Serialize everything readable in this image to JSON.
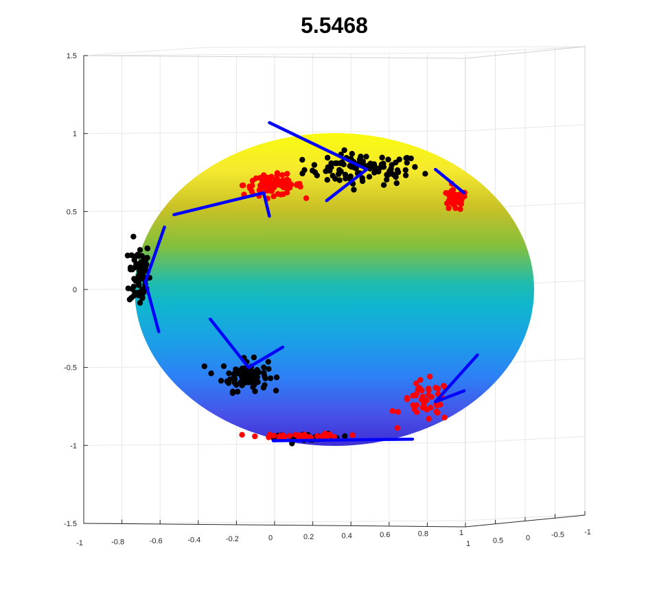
{
  "chart_data": {
    "type": "scatter",
    "title": "5.5468",
    "xlabel": "",
    "ylabel": "",
    "zlabel": "",
    "xlim": [
      -1,
      1
    ],
    "ylim": [
      1,
      -1
    ],
    "zlim": [
      -1.5,
      1.5
    ],
    "grid": true,
    "x_ticks": [
      "-1",
      "-0.8",
      "-0.6",
      "-0.4",
      "-0.2",
      "0",
      "0.2",
      "0.4",
      "0.6",
      "0.8",
      "1"
    ],
    "y_ticks": [
      "1",
      "0.5",
      "0",
      "-0.5",
      "-1"
    ],
    "z_ticks": [
      "1.5",
      "1",
      "0.5",
      "0",
      "-0.5",
      "-1",
      "-1.5"
    ],
    "surface": {
      "shape": "unit-sphere",
      "colormap": "parula",
      "colored_by": "z"
    },
    "series": [
      {
        "marker_color": "#000000",
        "clusters": [
          {
            "center": [
              0.47,
              0.77
            ],
            "spread": [
              0.28,
              0.09
            ],
            "count": 95
          },
          {
            "center": [
              -0.7,
              0.1
            ],
            "spread": [
              0.05,
              0.2
            ],
            "count": 75
          },
          {
            "center": [
              -0.15,
              -0.55
            ],
            "spread": [
              0.11,
              0.09
            ],
            "count": 80
          },
          {
            "center": [
              0.2,
              -0.95
            ],
            "spread": [
              0.18,
              0.02
            ],
            "count": 30
          }
        ]
      },
      {
        "marker_color": "#ff0000",
        "clusters": [
          {
            "center": [
              0.0,
              0.67
            ],
            "spread": [
              0.14,
              0.06
            ],
            "count": 85
          },
          {
            "center": [
              0.95,
              0.57
            ],
            "spread": [
              0.06,
              0.06
            ],
            "count": 40
          },
          {
            "center": [
              0.8,
              -0.72
            ],
            "spread": [
              0.12,
              0.12
            ],
            "count": 45
          },
          {
            "center": [
              0.15,
              -0.94
            ],
            "spread": [
              0.2,
              0.015
            ],
            "count": 35
          }
        ]
      }
    ],
    "segment_color": "#0000ff",
    "segments": [
      {
        "from": [
          -0.02,
          1.07
        ],
        "to": [
          0.49,
          0.77
        ]
      },
      {
        "from": [
          0.49,
          0.77
        ],
        "to": [
          0.28,
          0.57
        ]
      },
      {
        "from": [
          -0.52,
          0.48
        ],
        "to": [
          -0.05,
          0.62
        ]
      },
      {
        "from": [
          -0.05,
          0.62
        ],
        "to": [
          -0.02,
          0.47
        ]
      },
      {
        "from": [
          -0.67,
          0.05
        ],
        "to": [
          -0.57,
          0.4
        ]
      },
      {
        "from": [
          -0.67,
          0.05
        ],
        "to": [
          -0.6,
          -0.27
        ]
      },
      {
        "from": [
          -0.33,
          -0.19
        ],
        "to": [
          -0.13,
          -0.5
        ]
      },
      {
        "from": [
          -0.13,
          -0.5
        ],
        "to": [
          0.05,
          -0.37
        ]
      },
      {
        "from": [
          0.0,
          -0.97
        ],
        "to": [
          0.73,
          -0.96
        ]
      },
      {
        "from": [
          0.85,
          -0.72
        ],
        "to": [
          1.07,
          -0.42
        ]
      },
      {
        "from": [
          0.85,
          -0.72
        ],
        "to": [
          1.0,
          -0.65
        ]
      },
      {
        "from": [
          0.85,
          0.77
        ],
        "to": [
          1.0,
          0.62
        ]
      }
    ]
  }
}
